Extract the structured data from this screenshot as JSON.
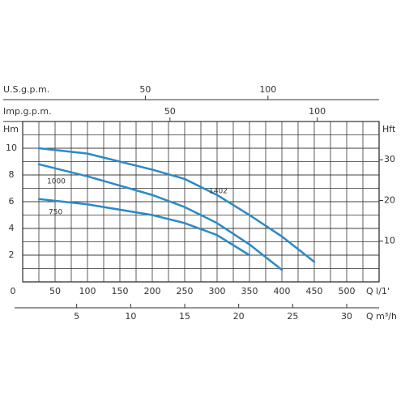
{
  "chart_data": {
    "type": "line",
    "x": [
      25,
      100,
      200,
      250,
      300,
      350,
      400,
      450
    ],
    "series": [
      {
        "name": "1402",
        "color": "#2a8ac7",
        "values": [
          10,
          9.6,
          8.4,
          7.7,
          6.5,
          5.0,
          3.4,
          1.5
        ]
      },
      {
        "name": "1000",
        "color": "#2a8ac7",
        "values": [
          8.8,
          7.9,
          6.5,
          5.6,
          4.4,
          2.8,
          0.9,
          null
        ]
      },
      {
        "name": "750",
        "color": "#2a8ac7",
        "values": [
          6.2,
          5.8,
          5.0,
          4.4,
          3.5,
          2.0,
          null,
          null
        ]
      }
    ],
    "xlabel": "Q l/1'",
    "xlim": [
      0,
      550
    ],
    "xticks": [
      0,
      50,
      100,
      150,
      200,
      250,
      300,
      350,
      400,
      450,
      500
    ],
    "ylabel": "Hm",
    "ylim": [
      0,
      12
    ],
    "yticks": [
      2,
      4,
      6,
      8,
      10
    ],
    "y2label": "Hft",
    "y2lim": [
      0,
      39.4
    ],
    "y2ticks": [
      10,
      20,
      30
    ],
    "secondary_x_axes": [
      {
        "label": "U.S.g.p.m.",
        "xlim": [
          0,
          145.3
        ],
        "xticks": [
          50,
          100
        ]
      },
      {
        "label": "Imp.g.p.m.",
        "xlim": [
          0,
          121
        ],
        "xticks": [
          50,
          100
        ]
      },
      {
        "label": "Q m³/h",
        "xlim": [
          0,
          33
        ],
        "xticks": [
          5,
          10,
          15,
          20,
          25,
          30
        ]
      }
    ],
    "grid": true
  }
}
